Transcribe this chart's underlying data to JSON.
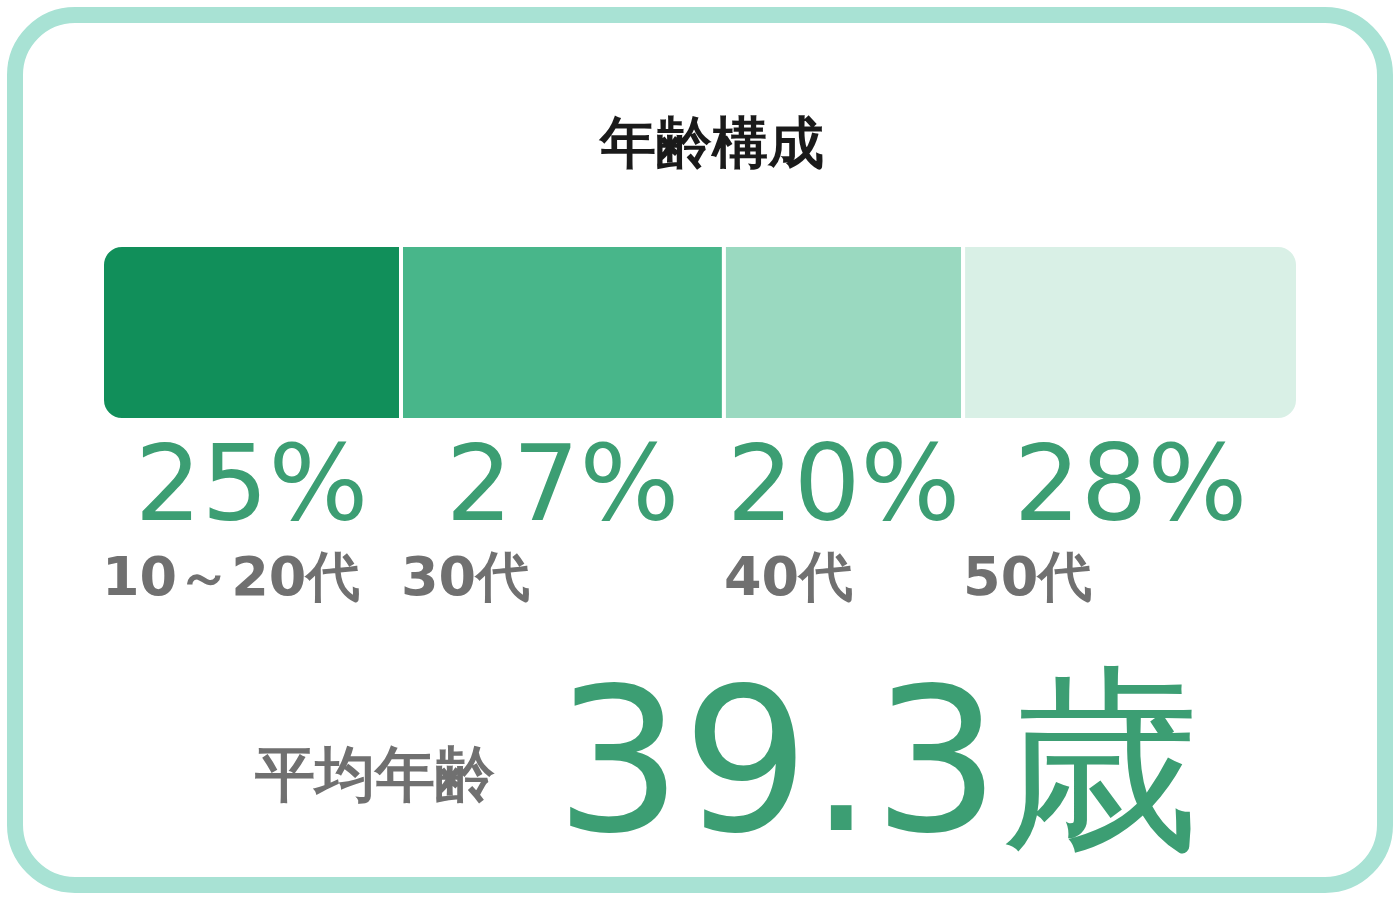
{
  "chart_data": {
    "type": "bar",
    "orientation": "horizontal",
    "stacked": true,
    "title": "年齢構成",
    "categories": [
      null
    ],
    "tick_labels": false,
    "legend": false,
    "series": [
      {
        "name": "10～20代",
        "color": "#118f5a",
        "values": [
          25
        ],
        "value_labels": [
          "25%"
        ]
      },
      {
        "name": "30代",
        "color": "#48b68a",
        "values": [
          27
        ],
        "value_labels": [
          "27%"
        ]
      },
      {
        "name": "40代",
        "color": "#9ad9c0",
        "values": [
          20
        ],
        "value_labels": [
          "20%"
        ]
      },
      {
        "name": "50代",
        "color": "#d9f0e6",
        "values": [
          28
        ],
        "value_labels": [
          "28%"
        ]
      }
    ],
    "annotations": [
      "平均年齢",
      "39.3歳"
    ]
  }
}
